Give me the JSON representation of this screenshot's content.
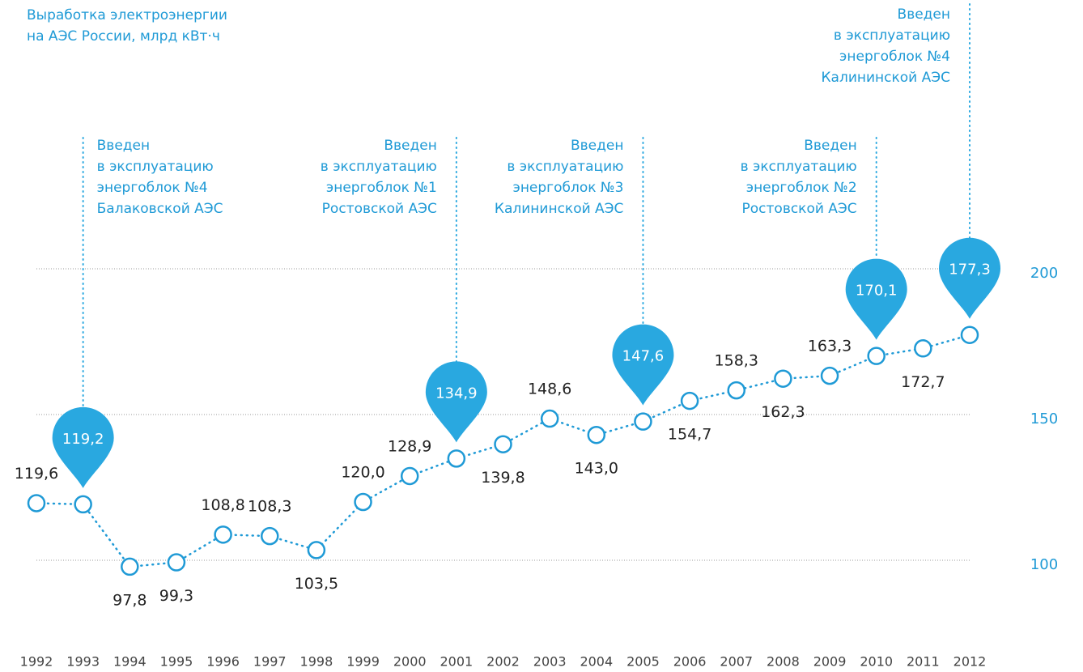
{
  "chart_data": {
    "type": "line",
    "title": [
      "Выработка электроэнергии",
      "на АЭС России, млрд кВт·ч"
    ],
    "categories": [
      "1992",
      "1993",
      "1994",
      "1995",
      "1996",
      "1997",
      "1998",
      "1999",
      "2000",
      "2001",
      "2002",
      "2003",
      "2004",
      "2005",
      "2006",
      "2007",
      "2008",
      "2009",
      "2010",
      "2011",
      "2012"
    ],
    "values": [
      119.6,
      119.2,
      97.8,
      99.3,
      108.8,
      108.3,
      103.5,
      120.0,
      128.9,
      134.9,
      139.8,
      148.6,
      143.0,
      147.6,
      154.7,
      158.3,
      162.3,
      163.3,
      170.1,
      172.7,
      177.3
    ],
    "value_labels": [
      "119,6",
      "119,2",
      "97,8",
      "99,3",
      "108,8",
      "108,3",
      "103,5",
      "120,0",
      "128,9",
      "134,9",
      "139,8",
      "148,6",
      "143,0",
      "147,6",
      "154,7",
      "158,3",
      "162,3",
      "163,3",
      "170,1",
      "172,7",
      "177,3"
    ],
    "color": "#1f9ad6",
    "ylim": [
      80,
      220
    ],
    "yticks": [
      100,
      150,
      200
    ],
    "grid": true,
    "annotations": [
      {
        "x": "1993",
        "lines": [
          "Введен",
          "в эксплуатацию",
          "энергоблок №4",
          "Балаковской АЭС"
        ]
      },
      {
        "x": "2001",
        "lines": [
          "Введен",
          "в эксплуатацию",
          "энергоблок №1",
          "Ростовской АЭС"
        ]
      },
      {
        "x": "2005",
        "lines": [
          "Введен",
          "в эксплуатацию",
          "энергоблок №3",
          "Калининской АЭС"
        ]
      },
      {
        "x": "2010",
        "lines": [
          "Введен",
          "в эксплуатацию",
          "энергоблок №2",
          "Ростовской АЭС"
        ]
      },
      {
        "x": "2012",
        "lines": [
          "Введен",
          "в эксплуатацию",
          "энергоблок №4",
          "Калининской АЭС"
        ]
      }
    ]
  }
}
